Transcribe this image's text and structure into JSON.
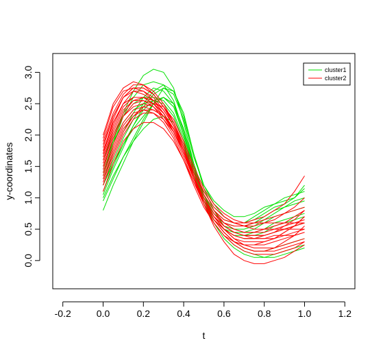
{
  "chart_data": {
    "type": "line",
    "title": "",
    "xlabel": "t",
    "ylabel": "y-coordinates",
    "xlim": [
      -0.25,
      1.25
    ],
    "ylim": [
      -0.45,
      3.3
    ],
    "xticks": [
      -0.2,
      0.0,
      0.2,
      0.4,
      0.6,
      0.8,
      1.0,
      1.2
    ],
    "xtick_labels": [
      "-0.2",
      "0.0",
      "0.2",
      "0.4",
      "0.6",
      "0.8",
      "1.0",
      "1.2"
    ],
    "yticks": [
      0.0,
      0.5,
      1.0,
      1.5,
      2.0,
      2.5,
      3.0
    ],
    "ytick_labels": [
      "0.0",
      "0.5",
      "1.0",
      "1.5",
      "2.0",
      "2.5",
      "3.0"
    ],
    "grid": false,
    "legend_position": "top-right",
    "x": [
      0.0,
      0.05,
      0.1,
      0.15,
      0.2,
      0.25,
      0.3,
      0.35,
      0.4,
      0.45,
      0.5,
      0.55,
      0.6,
      0.65,
      0.7,
      0.75,
      0.8,
      0.85,
      0.9,
      0.95,
      1.0
    ],
    "series": [
      {
        "name": "cluster1",
        "color": "#00e000",
        "curves": [
          [
            1.05,
            1.45,
            1.8,
            2.15,
            2.45,
            2.65,
            2.75,
            2.65,
            2.25,
            1.65,
            1.2,
            0.95,
            0.8,
            0.7,
            0.7,
            0.75,
            0.85,
            0.9,
            0.95,
            1.0,
            1.15
          ],
          [
            0.8,
            1.2,
            1.55,
            1.9,
            2.2,
            2.5,
            2.75,
            2.7,
            2.35,
            1.7,
            1.2,
            0.9,
            0.7,
            0.6,
            0.6,
            0.65,
            0.75,
            0.85,
            0.9,
            1.0,
            1.2
          ],
          [
            1.2,
            1.55,
            1.85,
            2.15,
            2.4,
            2.55,
            2.6,
            2.45,
            2.0,
            1.5,
            1.05,
            0.8,
            0.65,
            0.6,
            0.6,
            0.7,
            0.8,
            0.9,
            1.0,
            1.05,
            1.1
          ],
          [
            1.4,
            1.9,
            2.35,
            2.7,
            2.95,
            3.05,
            3.0,
            2.75,
            2.2,
            1.55,
            1.05,
            0.7,
            0.5,
            0.4,
            0.35,
            0.35,
            0.4,
            0.45,
            0.5,
            0.55,
            0.6
          ],
          [
            1.3,
            1.7,
            2.05,
            2.35,
            2.6,
            2.75,
            2.7,
            2.5,
            2.0,
            1.45,
            1.0,
            0.7,
            0.5,
            0.4,
            0.4,
            0.4,
            0.45,
            0.55,
            0.6,
            0.65,
            0.7
          ],
          [
            1.1,
            1.5,
            1.85,
            2.1,
            2.3,
            2.5,
            2.6,
            2.5,
            2.1,
            1.5,
            1.0,
            0.65,
            0.45,
            0.3,
            0.2,
            0.15,
            0.15,
            0.2,
            0.25,
            0.3,
            0.35
          ],
          [
            1.5,
            1.9,
            2.2,
            2.4,
            2.5,
            2.55,
            2.5,
            2.3,
            1.9,
            1.35,
            0.9,
            0.6,
            0.4,
            0.25,
            0.15,
            0.1,
            0.05,
            0.05,
            0.1,
            0.15,
            0.2
          ],
          [
            1.35,
            1.85,
            2.3,
            2.6,
            2.8,
            2.85,
            2.8,
            2.55,
            2.05,
            1.45,
            0.95,
            0.6,
            0.35,
            0.2,
            0.1,
            0.05,
            0.05,
            0.1,
            0.15,
            0.2,
            0.25
          ],
          [
            1.0,
            1.35,
            1.65,
            1.9,
            2.1,
            2.25,
            2.3,
            2.2,
            1.85,
            1.35,
            0.95,
            0.7,
            0.55,
            0.5,
            0.5,
            0.55,
            0.65,
            0.75,
            0.85,
            0.95,
            1.0
          ],
          [
            1.6,
            2.0,
            2.3,
            2.5,
            2.6,
            2.6,
            2.55,
            2.35,
            1.95,
            1.4,
            0.95,
            0.65,
            0.5,
            0.45,
            0.45,
            0.5,
            0.6,
            0.7,
            0.75,
            0.8,
            0.85
          ],
          [
            1.2,
            1.6,
            1.95,
            2.25,
            2.5,
            2.7,
            2.8,
            2.7,
            2.3,
            1.7,
            1.15,
            0.8,
            0.55,
            0.45,
            0.4,
            0.45,
            0.5,
            0.6,
            0.65,
            0.7,
            0.75
          ],
          [
            0.95,
            1.3,
            1.65,
            1.95,
            2.25,
            2.5,
            2.6,
            2.5,
            2.1,
            1.55,
            1.05,
            0.75,
            0.6,
            0.55,
            0.55,
            0.6,
            0.7,
            0.8,
            0.85,
            0.9,
            0.95
          ]
        ]
      },
      {
        "name": "cluster2",
        "color": "#ff0000",
        "curves": [
          [
            1.6,
            2.1,
            2.45,
            2.6,
            2.6,
            2.5,
            2.35,
            2.1,
            1.75,
            1.3,
            0.95,
            0.7,
            0.5,
            0.4,
            0.35,
            0.35,
            0.35,
            0.4,
            0.4,
            0.45,
            0.5
          ],
          [
            1.9,
            2.35,
            2.65,
            2.8,
            2.8,
            2.7,
            2.5,
            2.2,
            1.8,
            1.35,
            0.95,
            0.65,
            0.45,
            0.3,
            0.25,
            0.25,
            0.25,
            0.3,
            0.35,
            0.4,
            0.45
          ],
          [
            1.5,
            1.95,
            2.3,
            2.45,
            2.5,
            2.45,
            2.3,
            2.05,
            1.7,
            1.3,
            0.95,
            0.7,
            0.55,
            0.45,
            0.4,
            0.4,
            0.4,
            0.45,
            0.5,
            0.55,
            0.6
          ],
          [
            1.7,
            2.25,
            2.6,
            2.75,
            2.75,
            2.65,
            2.45,
            2.2,
            1.8,
            1.35,
            0.9,
            0.55,
            0.3,
            0.1,
            0.0,
            -0.05,
            -0.05,
            0.0,
            0.05,
            0.15,
            0.25
          ],
          [
            1.3,
            1.75,
            2.1,
            2.3,
            2.4,
            2.4,
            2.3,
            2.1,
            1.75,
            1.35,
            1.0,
            0.75,
            0.6,
            0.55,
            0.55,
            0.6,
            0.65,
            0.7,
            0.75,
            0.8,
            0.85
          ],
          [
            1.8,
            2.3,
            2.6,
            2.7,
            2.65,
            2.55,
            2.35,
            2.1,
            1.75,
            1.35,
            1.0,
            0.75,
            0.6,
            0.5,
            0.45,
            0.45,
            0.45,
            0.5,
            0.55,
            0.6,
            0.65
          ],
          [
            1.45,
            1.95,
            2.3,
            2.5,
            2.55,
            2.5,
            2.35,
            2.1,
            1.75,
            1.35,
            1.0,
            0.75,
            0.55,
            0.45,
            0.4,
            0.35,
            0.35,
            0.35,
            0.4,
            0.4,
            0.45
          ],
          [
            2.0,
            2.5,
            2.75,
            2.85,
            2.8,
            2.65,
            2.45,
            2.15,
            1.75,
            1.3,
            0.9,
            0.6,
            0.4,
            0.25,
            0.15,
            0.1,
            0.1,
            0.1,
            0.15,
            0.2,
            0.3
          ],
          [
            1.2,
            1.65,
            2.0,
            2.25,
            2.35,
            2.35,
            2.25,
            2.05,
            1.75,
            1.4,
            1.1,
            0.85,
            0.7,
            0.6,
            0.55,
            0.55,
            0.6,
            0.65,
            0.75,
            0.85,
            1.0
          ],
          [
            1.65,
            2.15,
            2.5,
            2.7,
            2.7,
            2.6,
            2.4,
            2.15,
            1.8,
            1.4,
            1.05,
            0.8,
            0.65,
            0.6,
            0.6,
            0.65,
            0.7,
            0.8,
            0.9,
            1.1,
            1.35
          ],
          [
            1.55,
            2.0,
            2.35,
            2.55,
            2.6,
            2.55,
            2.4,
            2.15,
            1.8,
            1.4,
            1.05,
            0.8,
            0.6,
            0.5,
            0.45,
            0.45,
            0.5,
            0.55,
            0.6,
            0.7,
            0.8
          ],
          [
            1.85,
            2.3,
            2.6,
            2.75,
            2.75,
            2.65,
            2.45,
            2.2,
            1.85,
            1.45,
            1.1,
            0.85,
            0.7,
            0.6,
            0.55,
            0.5,
            0.5,
            0.5,
            0.5,
            0.5,
            0.5
          ],
          [
            1.4,
            1.85,
            2.2,
            2.4,
            2.45,
            2.4,
            2.3,
            2.1,
            1.75,
            1.35,
            0.95,
            0.65,
            0.45,
            0.3,
            0.2,
            0.15,
            0.15,
            0.15,
            0.2,
            0.25,
            0.3
          ],
          [
            1.75,
            2.2,
            2.5,
            2.6,
            2.6,
            2.5,
            2.35,
            2.1,
            1.75,
            1.35,
            1.0,
            0.7,
            0.5,
            0.35,
            0.3,
            0.3,
            0.3,
            0.35,
            0.45,
            0.55,
            0.7
          ],
          [
            1.25,
            1.7,
            2.05,
            2.3,
            2.45,
            2.5,
            2.45,
            2.25,
            1.9,
            1.5,
            1.15,
            0.9,
            0.75,
            0.65,
            0.6,
            0.6,
            0.6,
            0.6,
            0.6,
            0.6,
            0.6
          ],
          [
            1.95,
            2.45,
            2.7,
            2.75,
            2.7,
            2.55,
            2.35,
            2.05,
            1.7,
            1.3,
            0.95,
            0.7,
            0.5,
            0.35,
            0.25,
            0.2,
            0.2,
            0.2,
            0.25,
            0.3,
            0.35
          ],
          [
            1.6,
            2.05,
            2.4,
            2.55,
            2.55,
            2.45,
            2.25,
            2.0,
            1.65,
            1.25,
            0.9,
            0.65,
            0.5,
            0.4,
            0.35,
            0.35,
            0.4,
            0.45,
            0.55,
            0.65,
            0.8
          ],
          [
            1.35,
            1.8,
            2.15,
            2.35,
            2.4,
            2.35,
            2.2,
            1.95,
            1.6,
            1.2,
            0.85,
            0.6,
            0.4,
            0.3,
            0.25,
            0.25,
            0.3,
            0.35,
            0.45,
            0.55,
            0.7
          ],
          [
            1.7,
            2.2,
            2.5,
            2.6,
            2.6,
            2.5,
            2.3,
            2.05,
            1.7,
            1.3,
            0.95,
            0.65,
            0.45,
            0.3,
            0.2,
            0.15,
            0.15,
            0.2,
            0.3,
            0.4,
            0.55
          ],
          [
            1.1,
            1.55,
            1.9,
            2.1,
            2.2,
            2.2,
            2.1,
            1.9,
            1.6,
            1.25,
            0.95,
            0.7,
            0.55,
            0.45,
            0.4,
            0.4,
            0.4,
            0.45,
            0.5,
            0.55,
            0.6
          ]
        ]
      }
    ]
  }
}
